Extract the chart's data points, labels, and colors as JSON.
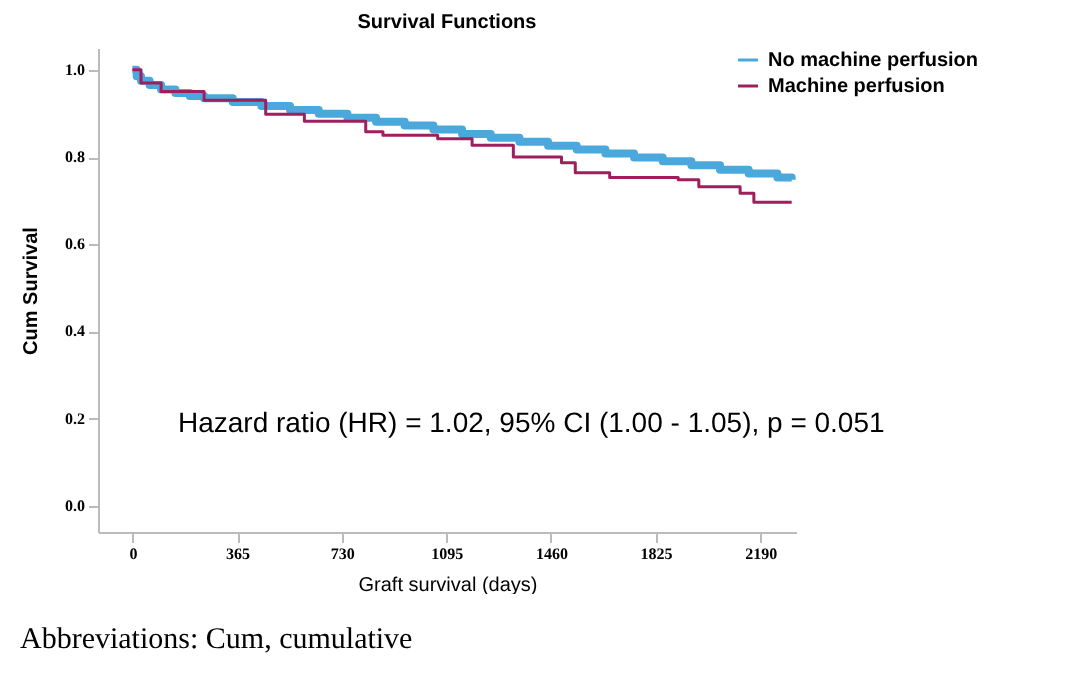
{
  "chart_data": {
    "type": "step",
    "title": "Survival Functions",
    "xlabel": "Graft survival (days)",
    "ylabel": "Cum Survival",
    "annotations": [
      "Hazard ratio (HR) = 1.02, 95% CI (1.00 - 1.05), p = 0.051",
      "Abbreviations: Cum, cumulative"
    ],
    "series": [
      {
        "name": "No machine perfusion",
        "color": "#4aa8dc",
        "x": [
          0,
          15,
          30,
          60,
          100,
          150,
          200,
          250,
          350,
          450,
          550,
          650,
          750,
          850,
          950,
          1050,
          1150,
          1250,
          1350,
          1450,
          1550,
          1650,
          1750,
          1850,
          1950,
          2050,
          2150,
          2250,
          2300
        ],
        "values": [
          1.0,
          0.985,
          0.975,
          0.965,
          0.955,
          0.947,
          0.94,
          0.935,
          0.926,
          0.917,
          0.908,
          0.899,
          0.89,
          0.881,
          0.872,
          0.863,
          0.853,
          0.844,
          0.835,
          0.826,
          0.817,
          0.808,
          0.799,
          0.79,
          0.781,
          0.771,
          0.762,
          0.753,
          0.748
        ]
      },
      {
        "name": "Machine perfusion",
        "color": "#9e1f5c",
        "x": [
          0,
          30,
          100,
          250,
          465,
          600,
          814,
          874,
          1065,
          1185,
          1329,
          1497,
          1545,
          1665,
          1904,
          1976,
          2120,
          2168,
          2300
        ],
        "values": [
          1.0,
          0.97,
          0.95,
          0.93,
          0.898,
          0.882,
          0.858,
          0.85,
          0.842,
          0.827,
          0.8,
          0.787,
          0.764,
          0.753,
          0.748,
          0.732,
          0.717,
          0.696,
          0.696
        ]
      }
    ],
    "xlim": [
      -120,
      2315
    ],
    "xticks": [
      0,
      365,
      730,
      1095,
      1460,
      1825,
      2190
    ],
    "ylim": [
      -0.06,
      1.05
    ],
    "yticks": [
      {
        "value": 0,
        "label": "0.0"
      },
      {
        "value": 0.2,
        "label": "0.2"
      },
      {
        "value": 0.4,
        "label": "0.4"
      },
      {
        "value": 0.6,
        "label": "0.6"
      },
      {
        "value": 0.8,
        "label": "0.8"
      },
      {
        "value": 1,
        "label": "1.0"
      }
    ],
    "grid": false,
    "legend": "top right",
    "marker": "none",
    "line_style": "solid"
  }
}
